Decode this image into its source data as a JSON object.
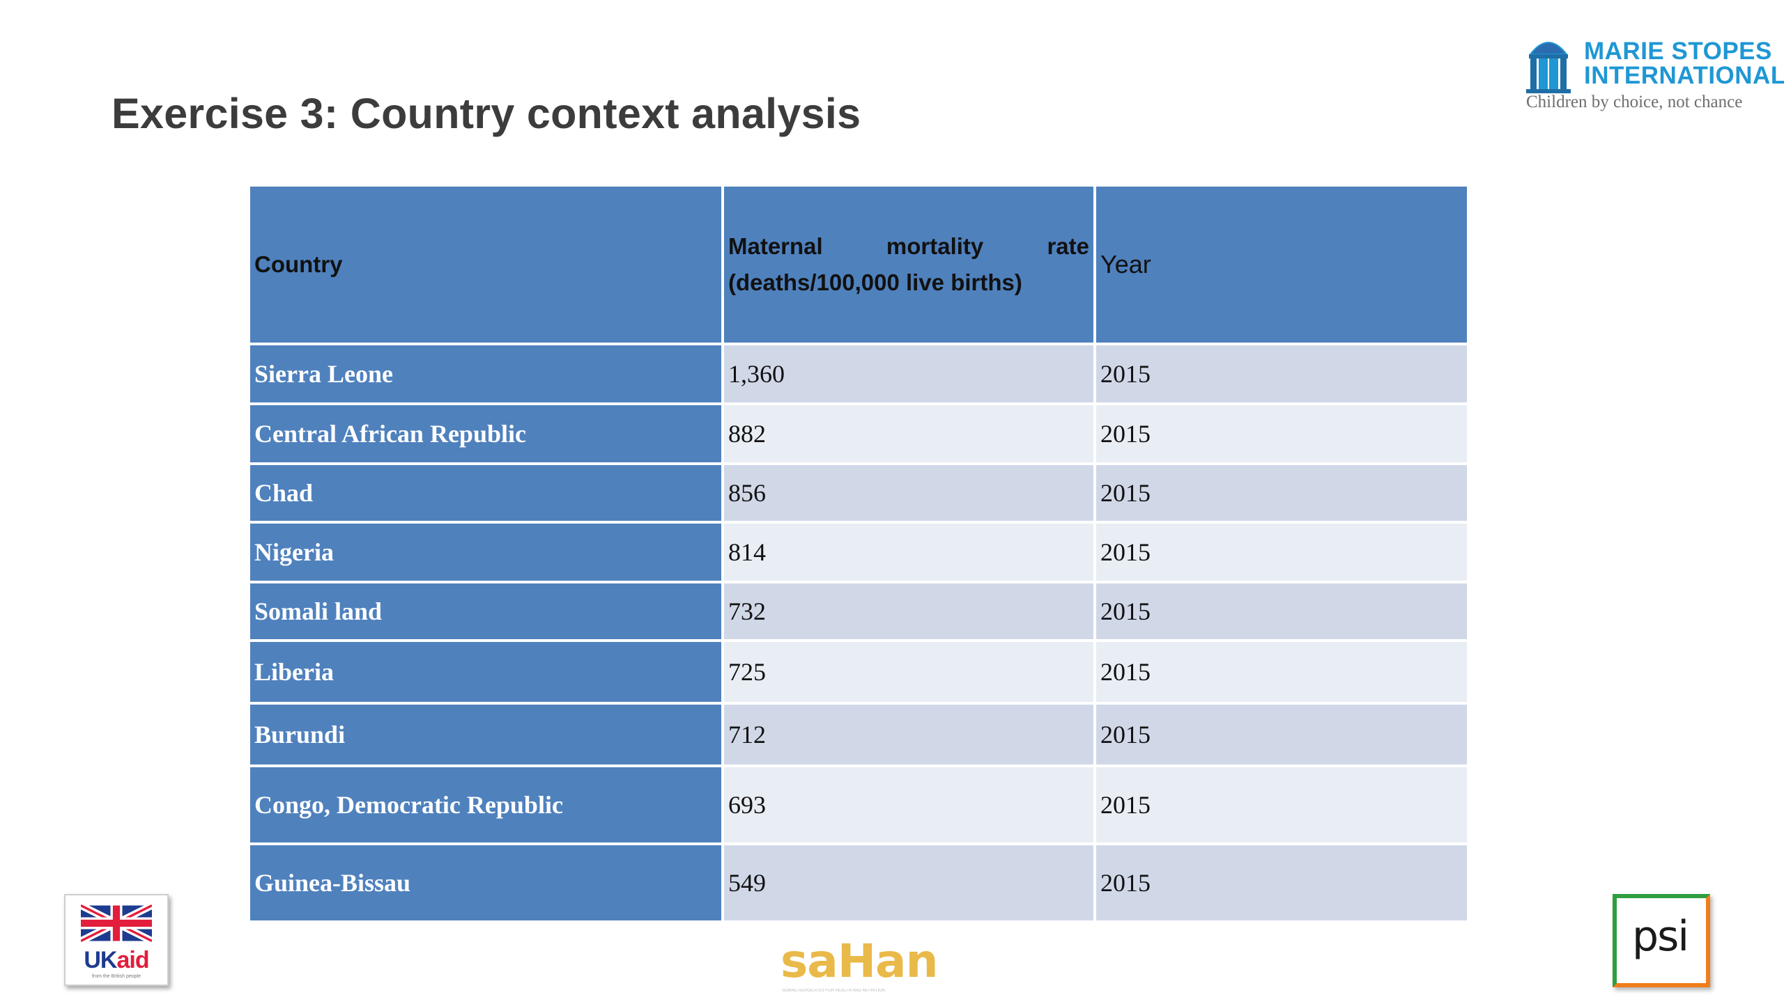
{
  "slide": {
    "title": "Exercise 3: Country context analysis"
  },
  "logos": {
    "msi": {
      "line1": "MARIE STOPES",
      "line2": "INTERNATIONAL",
      "tagline": "Children by choice, not chance"
    },
    "ukaid": {
      "uk": "UK",
      "aid": "aid",
      "sub": "from the British people"
    },
    "sahan": {
      "word": "saHan",
      "sub": "SOMALI ADVOCATES FOR HEALTH AND NUTRITION"
    },
    "psi": {
      "text": "psi"
    },
    "colors": {
      "msi_blue": "#1f97d4",
      "sahan_gold": "#e9b949",
      "psi_green": "#2e9e3e",
      "psi_orange": "#f07d1a",
      "ukaid_red": "#e31d3c"
    }
  },
  "table": {
    "header": {
      "country": "Country",
      "mmr_word1": "Maternal",
      "mmr_word2": "mortality",
      "mmr_word3": "rate",
      "mmr_line2": "(deaths/100,000 live births)",
      "year": "Year"
    },
    "rows": [
      {
        "country": "Sierra Leone",
        "mmr": "1,360",
        "year": "2015"
      },
      {
        "country": "Central African Republic",
        "mmr": "882",
        "year": "2015"
      },
      {
        "country": "Chad",
        "mmr": "856",
        "year": "2015"
      },
      {
        "country": "Nigeria",
        "mmr": "814",
        "year": "2015"
      },
      {
        "country": "Somali land",
        "mmr": "732",
        "year": "2015"
      },
      {
        "country": "Liberia",
        "mmr": "725",
        "year": "2015"
      },
      {
        "country": "Burundi",
        "mmr": "712",
        "year": "2015"
      },
      {
        "country": "Congo, Democratic Republic",
        "mmr": "693",
        "year": "2015"
      },
      {
        "country": "Guinea-Bissau",
        "mmr": "549",
        "year": "2015"
      }
    ],
    "colors": {
      "header_bg": "#4f81bd",
      "row_band_1": "#d0d8e8",
      "row_band_2": "#e9edf4"
    }
  }
}
